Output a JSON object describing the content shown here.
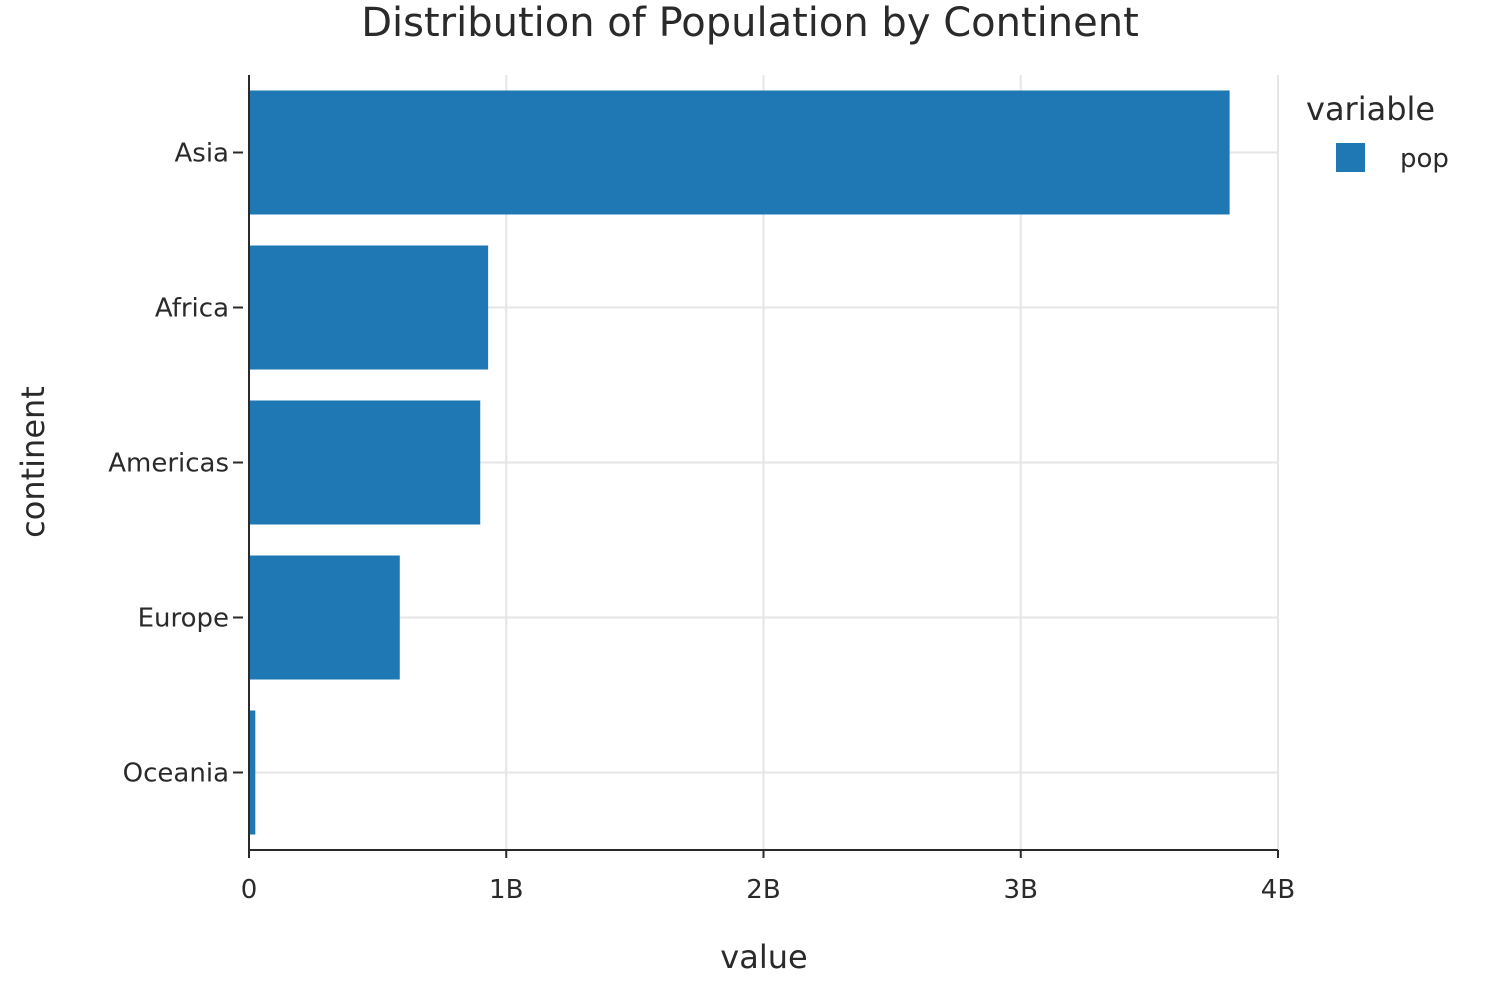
{
  "chart_data": {
    "type": "bar",
    "orientation": "horizontal",
    "title": "Distribution of Population by Continent",
    "xlabel": "value",
    "ylabel": "continent",
    "categories": [
      "Asia",
      "Africa",
      "Americas",
      "Europe",
      "Oceania"
    ],
    "series": [
      {
        "name": "pop",
        "color": "#1f77b4",
        "values": [
          3811953827,
          929539692,
          898871184,
          586098529,
          24549947
        ]
      }
    ],
    "xlim": [
      0,
      4000000000
    ],
    "x_ticks": [
      0,
      1000000000,
      2000000000,
      3000000000,
      4000000000
    ],
    "x_tick_labels": [
      "0",
      "1B",
      "2B",
      "3B",
      "4B"
    ],
    "grid": true,
    "legend": {
      "title": "variable",
      "placement": "top-right",
      "entries": [
        "pop"
      ]
    }
  }
}
